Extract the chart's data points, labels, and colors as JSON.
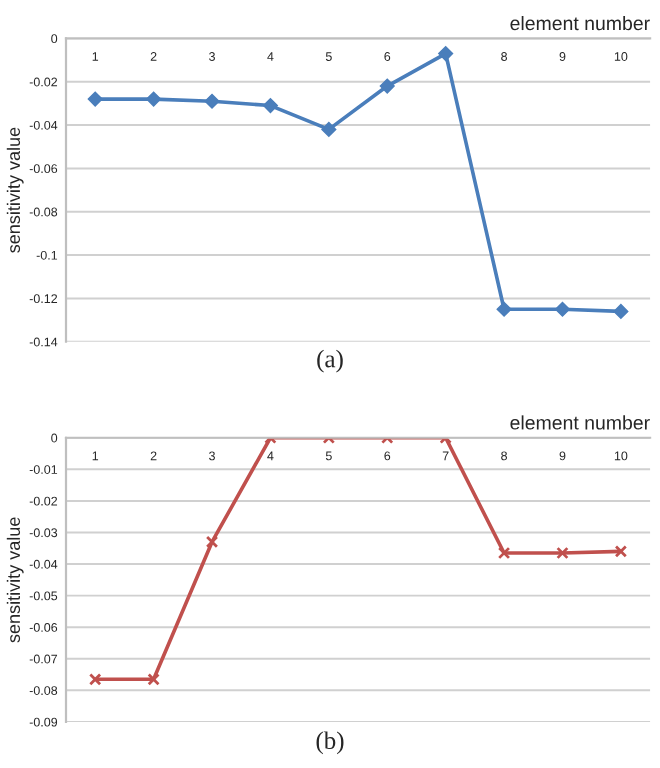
{
  "chart_data": [
    {
      "type": "line",
      "xlabel": "element number",
      "ylabel": "sensitivity value",
      "categories": [
        "1",
        "2",
        "3",
        "4",
        "5",
        "6",
        null,
        "8",
        "9",
        "10"
      ],
      "series": [
        {
          "color": "#4a7ebb",
          "values": [
            -0.028,
            -0.028,
            -0.029,
            -0.031,
            -0.042,
            -0.022,
            -0.007,
            -0.125,
            -0.125,
            -0.126
          ]
        }
      ],
      "ylim": [
        -0.14,
        0
      ],
      "yticks": [
        -0.14,
        -0.12,
        -0.1,
        -0.08,
        -0.06,
        -0.04,
        -0.02,
        0
      ],
      "grid": "y",
      "marker": "diamond",
      "line_style": "solid",
      "legend": false,
      "annotations": [
        "(a)"
      ]
    },
    {
      "type": "line",
      "xlabel": "element number",
      "ylabel": "sensitivity value",
      "categories": [
        "1",
        "2",
        "3",
        "4",
        "5",
        "6",
        "7",
        "8",
        "9",
        "10"
      ],
      "series": [
        {
          "color": "#c0504d",
          "values": [
            -0.0765,
            -0.0765,
            -0.033,
            0,
            0,
            0,
            0,
            -0.0365,
            -0.0365,
            -0.036
          ]
        }
      ],
      "ylim": [
        -0.09,
        0
      ],
      "yticks": [
        -0.09,
        -0.08,
        -0.07,
        -0.06,
        -0.05,
        -0.04,
        -0.03,
        -0.02,
        -0.01,
        0
      ],
      "grid": "y",
      "marker": "cross",
      "line_style": "solid",
      "legend": false,
      "annotations": [
        "(b)"
      ]
    }
  ]
}
